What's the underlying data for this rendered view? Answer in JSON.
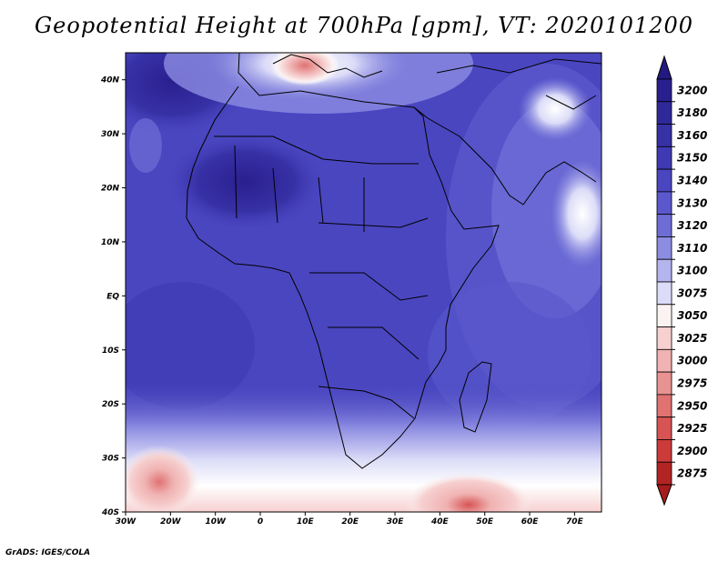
{
  "title": "Geopotential Height at 700hPa [gpm], VT: 2020101200",
  "credit": "GrADS: IGES/COLA",
  "map": {
    "lon_range": [
      -30,
      76
    ],
    "lat_range": [
      -40,
      45
    ],
    "lat_ticks": [
      {
        "value": 40,
        "label": "40N"
      },
      {
        "value": 30,
        "label": "30N"
      },
      {
        "value": 20,
        "label": "20N"
      },
      {
        "value": 10,
        "label": "10N"
      },
      {
        "value": 0,
        "label": "EQ"
      },
      {
        "value": -10,
        "label": "10S"
      },
      {
        "value": -20,
        "label": "20S"
      },
      {
        "value": -30,
        "label": "30S"
      },
      {
        "value": -40,
        "label": "40S"
      }
    ],
    "lon_ticks": [
      {
        "value": -30,
        "label": "30W"
      },
      {
        "value": -20,
        "label": "20W"
      },
      {
        "value": -10,
        "label": "10W"
      },
      {
        "value": 0,
        "label": "0"
      },
      {
        "value": 10,
        "label": "10E"
      },
      {
        "value": 20,
        "label": "20E"
      },
      {
        "value": 30,
        "label": "30E"
      },
      {
        "value": 40,
        "label": "40E"
      },
      {
        "value": 50,
        "label": "50E"
      },
      {
        "value": 60,
        "label": "60E"
      },
      {
        "value": 70,
        "label": "70E"
      }
    ]
  },
  "colorbar": {
    "levels": [
      {
        "label": "3200",
        "color": "#2a1f8f"
      },
      {
        "label": "3180",
        "color": "#2f2899"
      },
      {
        "label": "3160",
        "color": "#3731a6"
      },
      {
        "label": "3150",
        "color": "#3f3ab3"
      },
      {
        "label": "3140",
        "color": "#4a46c0"
      },
      {
        "label": "3130",
        "color": "#5a58cc"
      },
      {
        "label": "3120",
        "color": "#6e6dd6"
      },
      {
        "label": "3110",
        "color": "#8c8ce2"
      },
      {
        "label": "3100",
        "color": "#b4b4ee"
      },
      {
        "label": "3075",
        "color": "#dcdcf8"
      },
      {
        "label": "3050",
        "color": "#fbf2f2"
      },
      {
        "label": "3025",
        "color": "#f7d0d0"
      },
      {
        "label": "3000",
        "color": "#f0b2b2"
      },
      {
        "label": "2975",
        "color": "#e89292"
      },
      {
        "label": "2950",
        "color": "#e07272"
      },
      {
        "label": "2925",
        "color": "#d85454"
      },
      {
        "label": "2900",
        "color": "#cc3a3a"
      },
      {
        "label": "2875",
        "color": "#b22424"
      }
    ],
    "top_cap_color": "#221a80",
    "bottom_cap_color": "#a61c1c"
  }
}
